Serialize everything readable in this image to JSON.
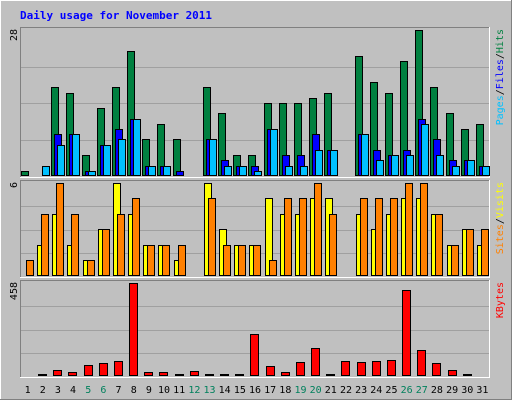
{
  "chart_data": {
    "type": "bar",
    "title": "Daily usage for November 2011",
    "days": [
      "1",
      "2",
      "3",
      "4",
      "5",
      "6",
      "7",
      "8",
      "9",
      "10",
      "11",
      "12",
      "13",
      "14",
      "15",
      "16",
      "17",
      "18",
      "19",
      "20",
      "21",
      "22",
      "23",
      "24",
      "25",
      "26",
      "27",
      "28",
      "29",
      "30",
      "31"
    ],
    "weekend_days": [
      "5",
      "6",
      "12",
      "13",
      "19",
      "20",
      "26",
      "27"
    ],
    "panels": [
      {
        "id": "hits-files-pages",
        "max_label": "28",
        "ymax": 28,
        "legend": [
          {
            "text": "Hits",
            "color": "#008040"
          },
          {
            "text": "/",
            "color": "#000000"
          },
          {
            "text": "Files",
            "color": "#0000ff"
          },
          {
            "text": "/",
            "color": "#000000"
          },
          {
            "text": "Pages",
            "color": "#00c0ff"
          }
        ],
        "series": [
          {
            "name": "Hits",
            "color": "#008040",
            "values": [
              1,
              0,
              17,
              16,
              4,
              13,
              17,
              24,
              7,
              10,
              7,
              0,
              17,
              12,
              4,
              4,
              14,
              14,
              14,
              15,
              16,
              0,
              23,
              18,
              16,
              22,
              28,
              17,
              12,
              9,
              10
            ]
          },
          {
            "name": "Files",
            "color": "#0000ff",
            "values": [
              0,
              0,
              8,
              8,
              1,
              6,
              9,
              11,
              2,
              2,
              1,
              0,
              7,
              3,
              2,
              2,
              9,
              4,
              4,
              8,
              5,
              0,
              8,
              5,
              4,
              5,
              11,
              7,
              3,
              3,
              2
            ]
          },
          {
            "name": "Pages",
            "color": "#00c0ff",
            "values": [
              0,
              2,
              6,
              8,
              1,
              6,
              7,
              11,
              2,
              2,
              0,
              0,
              7,
              2,
              2,
              1,
              9,
              2,
              2,
              5,
              5,
              0,
              8,
              3,
              4,
              4,
              10,
              4,
              2,
              3,
              2
            ]
          }
        ]
      },
      {
        "id": "visits-sites",
        "max_label": "6",
        "ymax": 6,
        "legend": [
          {
            "text": "Visits",
            "color": "#ffff00"
          },
          {
            "text": "/",
            "color": "#000000"
          },
          {
            "text": "Sites",
            "color": "#ff8000"
          }
        ],
        "series": [
          {
            "name": "Visits",
            "color": "#ffff00",
            "values": [
              0,
              2,
              4,
              2,
              1,
              3,
              6,
              4,
              2,
              2,
              1,
              0,
              6,
              3,
              2,
              2,
              5,
              4,
              4,
              5,
              5,
              0,
              4,
              3,
              4,
              5,
              5,
              4,
              2,
              3,
              2
            ]
          },
          {
            "name": "Sites",
            "color": "#ff8000",
            "values": [
              1,
              4,
              6,
              4,
              1,
              3,
              4,
              5,
              2,
              2,
              2,
              0,
              5,
              2,
              2,
              2,
              1,
              5,
              5,
              6,
              4,
              0,
              5,
              5,
              5,
              6,
              6,
              4,
              2,
              3,
              3
            ]
          }
        ]
      },
      {
        "id": "kbytes",
        "max_label": "458",
        "ymax": 458,
        "legend": [
          {
            "text": "KBytes",
            "color": "#ff0000"
          }
        ],
        "series": [
          {
            "name": "KBytes",
            "color": "#ff0000",
            "values": [
              5,
              12,
              28,
              20,
              55,
              65,
              75,
              458,
              18,
              18,
              12,
              25,
              12,
              10,
              10,
              208,
              50,
              18,
              70,
              140,
              12,
              72,
              70,
              72,
              80,
              425,
              130,
              65,
              30,
              12,
              0
            ]
          }
        ]
      }
    ],
    "colors": {
      "background": "#c0c0c0",
      "plot_background": "#c0c0c0",
      "title": "#0000ff",
      "weekday_label": "#000000",
      "weekend_label": "#00805c"
    }
  }
}
